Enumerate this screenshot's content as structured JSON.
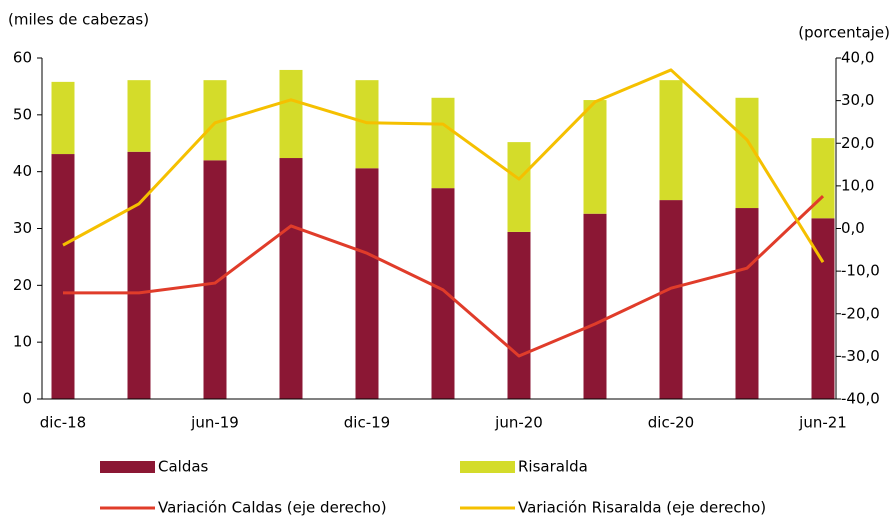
{
  "chart_data": {
    "type": "bar",
    "stacked": true,
    "y_label": "(miles de cabezas)",
    "y2_label": "(porcentaje)",
    "categories": [
      "dic-18",
      null,
      "jun-19",
      null,
      "dic-19",
      null,
      "jun-20",
      null,
      "dic-20",
      null,
      "jun-21"
    ],
    "series": [
      {
        "name": "Caldas",
        "type": "bar",
        "color": "#8b1734",
        "values": [
          43.1,
          43.5,
          42.0,
          42.4,
          40.6,
          37.1,
          29.4,
          32.6,
          35.0,
          33.6,
          31.8
        ]
      },
      {
        "name": "Risaralda",
        "type": "bar",
        "color": "#d4dc2a",
        "values": [
          12.7,
          12.6,
          14.1,
          15.5,
          15.5,
          15.9,
          15.8,
          20.0,
          21.1,
          19.4,
          14.1
        ]
      },
      {
        "name": "Variación Caldas (eje derecho)",
        "type": "line",
        "axis": "y2",
        "color": "#e03c2a",
        "values": [
          -15.1,
          -15.1,
          -12.8,
          0.6,
          -5.8,
          -14.4,
          -29.9,
          -22.4,
          -14.0,
          -9.3,
          7.6
        ]
      },
      {
        "name": "Variación Risaralda (eje derecho)",
        "type": "line",
        "axis": "y2",
        "color": "#f5c000",
        "values": [
          -3.9,
          5.8,
          24.8,
          30.2,
          24.8,
          24.5,
          11.6,
          29.7,
          37.2,
          20.8,
          -7.9
        ]
      }
    ],
    "ylim": [
      0,
      60
    ],
    "yticks": [
      0,
      10,
      20,
      30,
      40,
      50,
      60
    ],
    "y2lim": [
      -40,
      40
    ],
    "y2ticks": [
      {
        "value": -40,
        "label": "-40,0"
      },
      {
        "value": -30,
        "label": "-30,0"
      },
      {
        "value": -20,
        "label": "-20,0"
      },
      {
        "value": -10,
        "label": "-10,0"
      },
      {
        "value": 0,
        "label": "0,0"
      },
      {
        "value": 10,
        "label": "10,0"
      },
      {
        "value": 20,
        "label": "20,0"
      },
      {
        "value": 30,
        "label": "30,0"
      },
      {
        "value": 40,
        "label": "40,0"
      }
    ],
    "grid": false
  }
}
